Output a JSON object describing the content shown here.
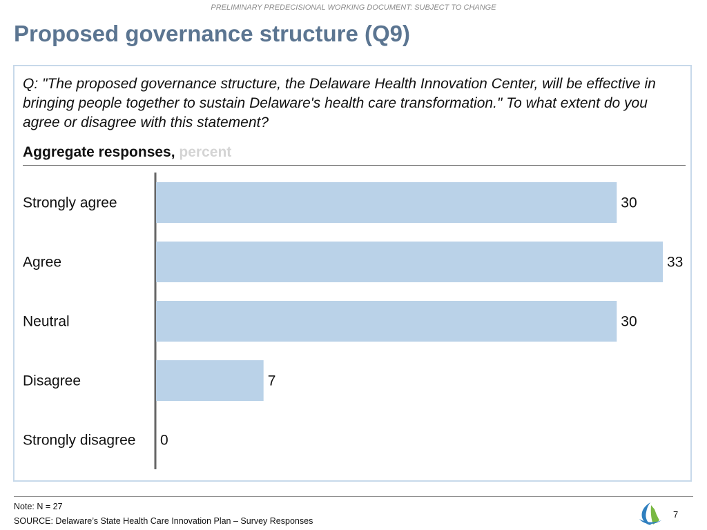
{
  "header_note": "PRELIMINARY PREDECISIONAL WORKING DOCUMENT: SUBJECT TO CHANGE",
  "slide_title": "Proposed governance structure (Q9)",
  "question": "Q: \"The proposed governance structure, the Delaware Health Innovation Center, will be effective in bringing people together to sustain Delaware's health care transformation.\" To what extent do you agree or disagree with this statement?",
  "subtitle": {
    "main": "Aggregate responses,",
    "unit": "percent"
  },
  "chart_data": {
    "type": "bar",
    "orientation": "horizontal",
    "categories": [
      "Strongly agree",
      "Agree",
      "Neutral",
      "Disagree",
      "Strongly disagree"
    ],
    "values": [
      30,
      33,
      30,
      7,
      0
    ],
    "title": "Aggregate responses",
    "xlabel": "",
    "ylabel": "",
    "unit": "percent",
    "xlim": [
      0,
      33
    ],
    "grid": false,
    "legend": "none",
    "bar_color": "#bad2e8",
    "axis_color": "#666666"
  },
  "footer": {
    "note": "Note: N = 27",
    "source": "SOURCE: Delaware’s State Health Care Innovation Plan – Survey Responses",
    "page_number": "7"
  },
  "colors": {
    "title": "#5b7591",
    "panel_border": "#c7d9ea",
    "logo_blue": "#2f7fbf",
    "logo_green": "#79b842"
  }
}
